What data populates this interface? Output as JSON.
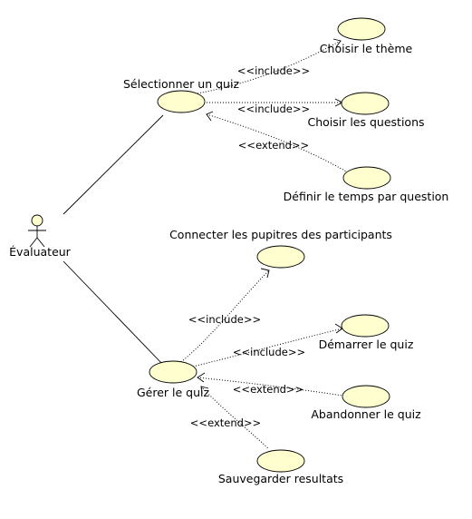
{
  "actor": {
    "label": "Évaluateur"
  },
  "use_cases": {
    "choisir_theme": "Choisir le thème",
    "selectionner_quiz": "Sélectionner un quiz",
    "choisir_questions": "Choisir les questions",
    "definir_temps": "Définir le temps par question",
    "connecter_pupitres": "Connecter les pupitres des participants",
    "demarrer_quiz": "Démarrer le quiz",
    "gerer_quiz": "Gérer le quiz",
    "abandonner_quiz": "Abandonner le quiz",
    "sauvegarder_resultats": "Sauvegarder resultats"
  },
  "relations": {
    "include_theme": "<<include>>",
    "include_questions": "<<include>>",
    "extend_temps": "<<extend>>",
    "include_connecter": "<<include>>",
    "include_demarrer": "<<include>>",
    "extend_abandonner": "<<extend>>",
    "extend_sauvegarder": "<<extend>>"
  },
  "colors": {
    "use_case_fill": "#fefece",
    "stroke": "#000000"
  }
}
